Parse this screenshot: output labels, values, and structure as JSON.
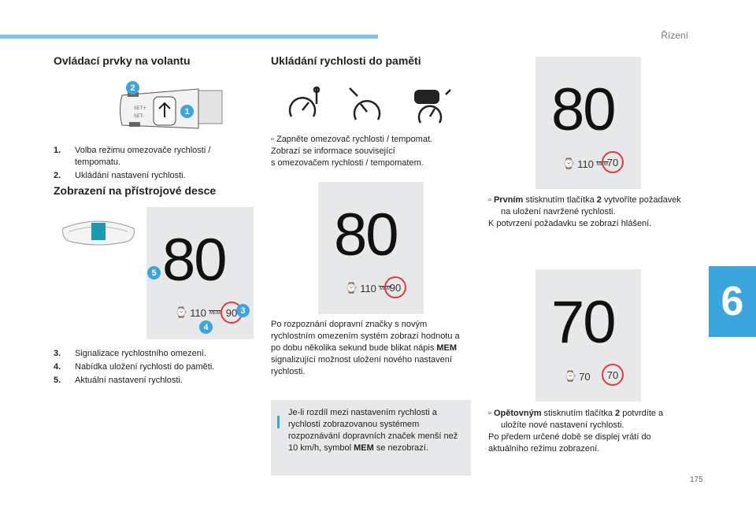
{
  "header": {
    "chapter": "Řízení",
    "chapter_number": "6",
    "page_number": "175"
  },
  "left": {
    "title1": "Ovládací prvky na volantu",
    "stalk_badges": [
      "2",
      "1"
    ],
    "list1": [
      {
        "num": "1.",
        "text": "Volba režimu omezovače rychlosti / tempomatu."
      },
      {
        "num": "2.",
        "text": "Ukládání nastavení rychlosti."
      }
    ],
    "title2": "Zobrazení na přístrojové desce",
    "display": {
      "speed": "80",
      "limit": "110",
      "mem": "MEM",
      "sign": "90"
    },
    "display_badges": [
      "5",
      "3",
      "4"
    ],
    "list2": [
      {
        "num": "3.",
        "text": "Signalizace rychlostního omezení."
      },
      {
        "num": "4.",
        "text": "Nabídka uložení rychlosti do paměti."
      },
      {
        "num": "5.",
        "text": "Aktuální nastavení rychlosti."
      }
    ]
  },
  "middle": {
    "title": "Ukládání rychlosti do paměti",
    "bullet_mark": "",
    "para1_line1": "Zapněte omezovač rychlosti / tempomat.",
    "para1_line2": "Zobrazí se informace související",
    "para1_line3": "s omezovačem rychlosti / tempomatem.",
    "display": {
      "speed": "80",
      "limit": "110",
      "mem": "MEM",
      "sign": "90"
    },
    "para2_a": "Po rozpoznání dopravní značky s novým rychlostním omezením systém zobrazí hodnotu a po dobu několika sekund bude blikat nápis ",
    "para2_bold": "MEM",
    "para2_b": " signalizující možnost uložení nového nastavení rychlosti.",
    "note_a": "Je-li rozdíl mezi nastavením rychlosti a rychlostí zobrazovanou systémem rozpoznávání dopravních značek menší než 10 km/h, symbol ",
    "note_bold": "MEM",
    "note_b": " se nezobrazí."
  },
  "right": {
    "display1": {
      "speed": "80",
      "limit": "110",
      "mem": "MEM",
      "sign": "70"
    },
    "step1_bold": "Prvním",
    "step1_a": " stisknutím tlačítka ",
    "step1_num": "2",
    "step1_b": " vytvoříte požadavek na uložení navržené rychlosti.",
    "step1_after": "K potvrzení požadavku se zobrazí hlášení.",
    "display2": {
      "speed": "70",
      "limit": "70",
      "sign": "70"
    },
    "step2_bold": "Opětovným",
    "step2_a": " stisknutím tlačítka ",
    "step2_num": "2",
    "step2_b": " potvrdíte a uložíte nové nastavení rychlosti.",
    "step2_after": "Po předem určené době se displej vrátí do aktuálního režimu zobrazení."
  }
}
